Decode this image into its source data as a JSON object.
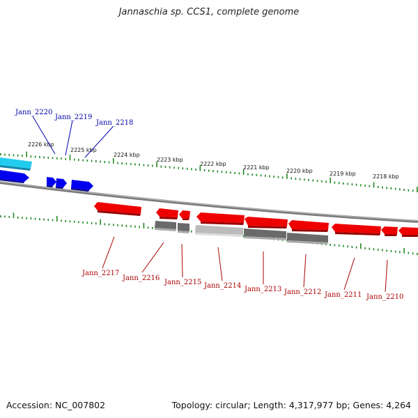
{
  "title": "Jannaschia sp. CCS1, complete genome",
  "footer": {
    "accession": "Accession: NC_007802",
    "summary": "Topology: circular; Length: 4,317,977 bp; Genes: 4,264"
  },
  "colors": {
    "forward_gene": "#0000ee",
    "forward_label": "#0000aa",
    "reverse_gene": "#ee0000",
    "reverse_label": "#aa0000",
    "highlight_gene": "#22ccee",
    "backbone": "#888888",
    "tick": "#228822"
  },
  "kbp_labels": [
    "2226 kbp",
    "2225 kbp",
    "2224 kbp",
    "2223 kbp",
    "2222 kbp",
    "2221 kbp",
    "2220 kbp",
    "2219 kbp",
    "2218 kbp"
  ],
  "forward_genes": [
    "Jann_2220",
    "Jann_2219",
    "Jann_2218"
  ],
  "reverse_genes": [
    "Jann_2217",
    "Jann_2216",
    "Jann_2215",
    "Jann_2214",
    "Jann_2213",
    "Jann_2212",
    "Jann_2211",
    "Jann_2210"
  ]
}
